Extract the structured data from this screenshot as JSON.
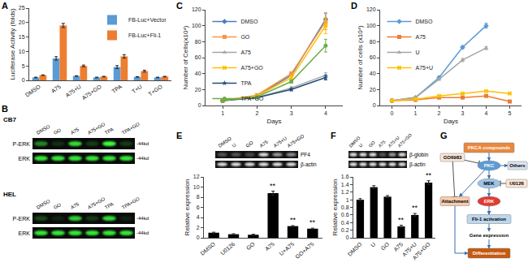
{
  "panel_labels": [
    "A",
    "B",
    "C",
    "D",
    "E",
    "F",
    "G"
  ],
  "chart_data": [
    {
      "type": "bar",
      "categories": [
        "DMSO",
        "A75",
        "A75+U",
        "A75+GO",
        "TPA",
        "T+U",
        "T+GO"
      ],
      "series": [
        {
          "name": "FB-Luc+Vector",
          "color": "#5b9bd5",
          "values": [
            1,
            7.6,
            1.5,
            1,
            4.6,
            1.2,
            1
          ],
          "errors": [
            0.1,
            0.6,
            0.1,
            0.1,
            0.5,
            0.1,
            0.1
          ]
        },
        {
          "name": "FB-Luc+Fli-1",
          "color": "#ed7d31",
          "values": [
            1.8,
            19,
            5,
            1.3,
            8.3,
            3.2,
            1.3
          ],
          "errors": [
            0.1,
            0.7,
            0.3,
            0.1,
            0.6,
            0.3,
            0.1
          ]
        }
      ],
      "y_label": "Luciferase Activity (folds)",
      "ylim": [
        0,
        25
      ],
      "yticks": [
        0,
        5,
        10,
        15,
        20,
        25
      ],
      "grid": false,
      "legend": "top right"
    },
    {
      "type": "line",
      "series": [
        {
          "name": "DMSO",
          "color": "#4a7ebb",
          "marker": "diamond",
          "x": [
            1,
            2,
            3,
            4
          ],
          "values": [
            6,
            12,
            38,
            108
          ],
          "errors": [
            0.3,
            0.6,
            2,
            8
          ]
        },
        {
          "name": "GO",
          "color": "#f79646",
          "marker": "square",
          "x": [
            1,
            2,
            3,
            4
          ],
          "values": [
            6,
            13,
            40,
            105
          ],
          "errors": [
            0.3,
            0.6,
            2,
            10
          ]
        },
        {
          "name": "A75",
          "color": "#a5a5a5",
          "marker": "triangle-up",
          "x": [
            1,
            2,
            3,
            4
          ],
          "values": [
            6,
            10,
            22,
            38
          ],
          "errors": [
            0.3,
            0.5,
            1.5,
            3
          ]
        },
        {
          "name": "A75+GO",
          "color": "#ffc000",
          "marker": "x",
          "x": [
            1,
            2,
            3,
            4
          ],
          "values": [
            6,
            12,
            35,
            100
          ],
          "errors": [
            0.3,
            0.6,
            2,
            10
          ]
        },
        {
          "name": "TPA",
          "color": "#1f4e79",
          "marker": "star",
          "x": [
            1,
            2,
            3,
            4
          ],
          "values": [
            6,
            10,
            20,
            35
          ],
          "errors": [
            0.3,
            0.5,
            1.5,
            3
          ]
        },
        {
          "name": "TPA+GO",
          "color": "#70ad47",
          "marker": "circle",
          "x": [
            1,
            2,
            3,
            4
          ],
          "values": [
            6,
            11,
            30,
            75
          ],
          "errors": [
            0.3,
            0.5,
            2,
            8
          ]
        }
      ],
      "x_label": "Days",
      "y_label": "Number of Cells(x10⁴)",
      "xlim": [
        0.5,
        4.5
      ],
      "xticks": [
        1,
        2,
        3,
        4
      ],
      "ylim": [
        0,
        120
      ],
      "yticks": [
        0,
        20,
        40,
        60,
        80,
        100,
        120
      ],
      "grid": false,
      "legend": "top left"
    },
    {
      "type": "line",
      "series": [
        {
          "name": "DMSO",
          "color": "#5b9bd5",
          "marker": "diamond",
          "x": [
            0,
            1,
            2,
            3,
            4
          ],
          "values": [
            6,
            10,
            35,
            73,
            100
          ],
          "errors": [
            0.3,
            0.5,
            1.5,
            2,
            3
          ]
        },
        {
          "name": "A75",
          "color": "#ed7d31",
          "marker": "square",
          "x": [
            0,
            1,
            2,
            3,
            4,
            5
          ],
          "values": [
            6,
            7,
            10,
            10,
            12,
            5
          ],
          "errors": [
            0.3,
            0.4,
            0.5,
            0.5,
            0.6,
            0.4
          ]
        },
        {
          "name": "U",
          "color": "#a5a5a5",
          "marker": "triangle-up",
          "x": [
            0,
            1,
            2,
            3,
            4
          ],
          "values": [
            6,
            10,
            33,
            57,
            72
          ],
          "errors": [
            0.3,
            0.5,
            1.5,
            2,
            2
          ]
        },
        {
          "name": "A75+U",
          "color": "#ffc000",
          "marker": "x",
          "x": [
            0,
            1,
            2,
            3,
            4,
            5
          ],
          "values": [
            6,
            8,
            12,
            15,
            18,
            15
          ],
          "errors": [
            0.3,
            0.4,
            0.6,
            0.7,
            0.8,
            0.7
          ]
        }
      ],
      "x_label": "Days",
      "y_label": "Number of cells (x10⁴)",
      "xlim": [
        -0.5,
        5.5
      ],
      "xticks": [
        0,
        1,
        2,
        3,
        4,
        5
      ],
      "ylim": [
        0,
        120
      ],
      "yticks": [
        0,
        20,
        40,
        60,
        80,
        100,
        120
      ],
      "grid": false,
      "legend": "top left"
    },
    {
      "type": "bar",
      "categories": [
        "DMSO",
        "U0126",
        "GO",
        "A75",
        "U+A75",
        "GO+A75"
      ],
      "values": [
        1,
        0.7,
        0.6,
        8.8,
        2.3,
        1.8
      ],
      "errors": [
        0.1,
        0.1,
        0.1,
        0.4,
        0.1,
        0.1
      ],
      "color": "#000000",
      "y_label": "Relative expression",
      "ylim": [
        0,
        12
      ],
      "yticks": [
        0,
        2,
        4,
        6,
        8,
        10,
        12
      ],
      "grid": false,
      "annotations": [
        {
          "category": "A75",
          "text": "**"
        },
        {
          "category": "U+A75",
          "text": "**"
        },
        {
          "category": "GO+A75",
          "text": "**"
        }
      ]
    },
    {
      "type": "bar",
      "categories": [
        "DMSO",
        "U",
        "GO",
        "A75",
        "A75+U",
        "A75+GO"
      ],
      "values": [
        1,
        1.33,
        1.08,
        0.3,
        0.6,
        1.45
      ],
      "errors": [
        0.03,
        0.04,
        0.03,
        0.03,
        0.04,
        0.05
      ],
      "color": "#000000",
      "y_label": "Relative expression",
      "ylim": [
        0,
        1.6
      ],
      "yticks": [
        0,
        0.2,
        0.4,
        0.6,
        0.8,
        1,
        1.2,
        1.4,
        1.6
      ],
      "grid": false,
      "annotations": [
        {
          "category": "A75",
          "text": "**"
        },
        {
          "category": "A75+U",
          "text": "**"
        },
        {
          "category": "A75+GO",
          "text": "**"
        }
      ]
    }
  ],
  "blots": {
    "lanes": [
      "DMSO",
      "GO",
      "A75",
      "A75+GO",
      "TPA",
      "TPA+GO"
    ],
    "marker_label": "-44kd",
    "cell_lines": [
      {
        "name": "CB7",
        "rows": [
          {
            "label": "P-ERK",
            "intensity": [
              0.5,
              0.15,
              0.85,
              0.2,
              1,
              0.2
            ]
          },
          {
            "label": "ERK",
            "intensity": [
              0.9,
              0.9,
              0.9,
              0.9,
              0.9,
              0.9
            ]
          }
        ]
      },
      {
        "name": "HEL",
        "rows": [
          {
            "label": "P-ERK",
            "intensity": [
              0.25,
              0.1,
              0.8,
              0.2,
              0.85,
              0.1
            ]
          },
          {
            "label": "ERK",
            "intensity": [
              0.9,
              0.9,
              0.9,
              0.9,
              0.9,
              0.9
            ]
          }
        ]
      }
    ]
  },
  "gels": [
    {
      "lanes": [
        "DMSO",
        "U",
        "GO",
        "A75",
        "A75+U",
        "A75+GO"
      ],
      "rows": [
        {
          "label": "PF4",
          "intensity": [
            0.3,
            0.3,
            0.25,
            0.9,
            0.6,
            0.55
          ]
        },
        {
          "label": "β-actin",
          "intensity": [
            0.9,
            0.9,
            0.9,
            0.9,
            0.9,
            0.9
          ]
        }
      ]
    },
    {
      "lanes": [
        "DMSO",
        "U",
        "GO",
        "A75",
        "A75+U",
        "A75+GO"
      ],
      "rows": [
        {
          "label": "β-globin",
          "intensity": [
            0.9,
            0.9,
            0.9,
            0.3,
            0.6,
            0.9
          ]
        },
        {
          "label": "β-actin",
          "intensity": [
            0.9,
            0.9,
            0.9,
            0.9,
            0.9,
            0.9
          ]
        }
      ]
    }
  ],
  "diagram": {
    "nodes": [
      {
        "id": "pkca",
        "label": "PKCA compounds"
      },
      {
        "id": "pkc",
        "label": "PKC"
      },
      {
        "id": "others",
        "label": "Others"
      },
      {
        "id": "go",
        "label": "GO6983"
      },
      {
        "id": "attachment",
        "label": "Attachment"
      },
      {
        "id": "mek",
        "label": "MEK"
      },
      {
        "id": "u0126",
        "label": "U0126"
      },
      {
        "id": "erk",
        "label": "ERK"
      },
      {
        "id": "fli",
        "label": "Fli-1 activation"
      },
      {
        "id": "gene",
        "label": "Gene expression"
      },
      {
        "id": "diff",
        "label": "Differentiation"
      }
    ],
    "edges": [
      {
        "from": "pkca",
        "to": "pkc",
        "kind": "activate"
      },
      {
        "from": "pkc",
        "to": "mek",
        "kind": "activate"
      },
      {
        "from": "mek",
        "to": "erk",
        "kind": "activate"
      },
      {
        "from": "erk",
        "to": "fli",
        "kind": "activate"
      },
      {
        "from": "fli",
        "to": "gene",
        "kind": "activate"
      },
      {
        "from": "gene",
        "to": "diff",
        "kind": "activate"
      },
      {
        "from": "pkc",
        "to": "others",
        "kind": "activate"
      },
      {
        "from": "pkc",
        "to": "attachment",
        "kind": "activate"
      },
      {
        "from": "attachment",
        "to": "diff",
        "kind": "activate"
      },
      {
        "from": "go",
        "to": "pkc",
        "kind": "inhibit"
      },
      {
        "from": "go",
        "to": "attachment",
        "kind": "inhibit"
      },
      {
        "from": "u0126",
        "to": "mek",
        "kind": "inhibit"
      }
    ]
  }
}
